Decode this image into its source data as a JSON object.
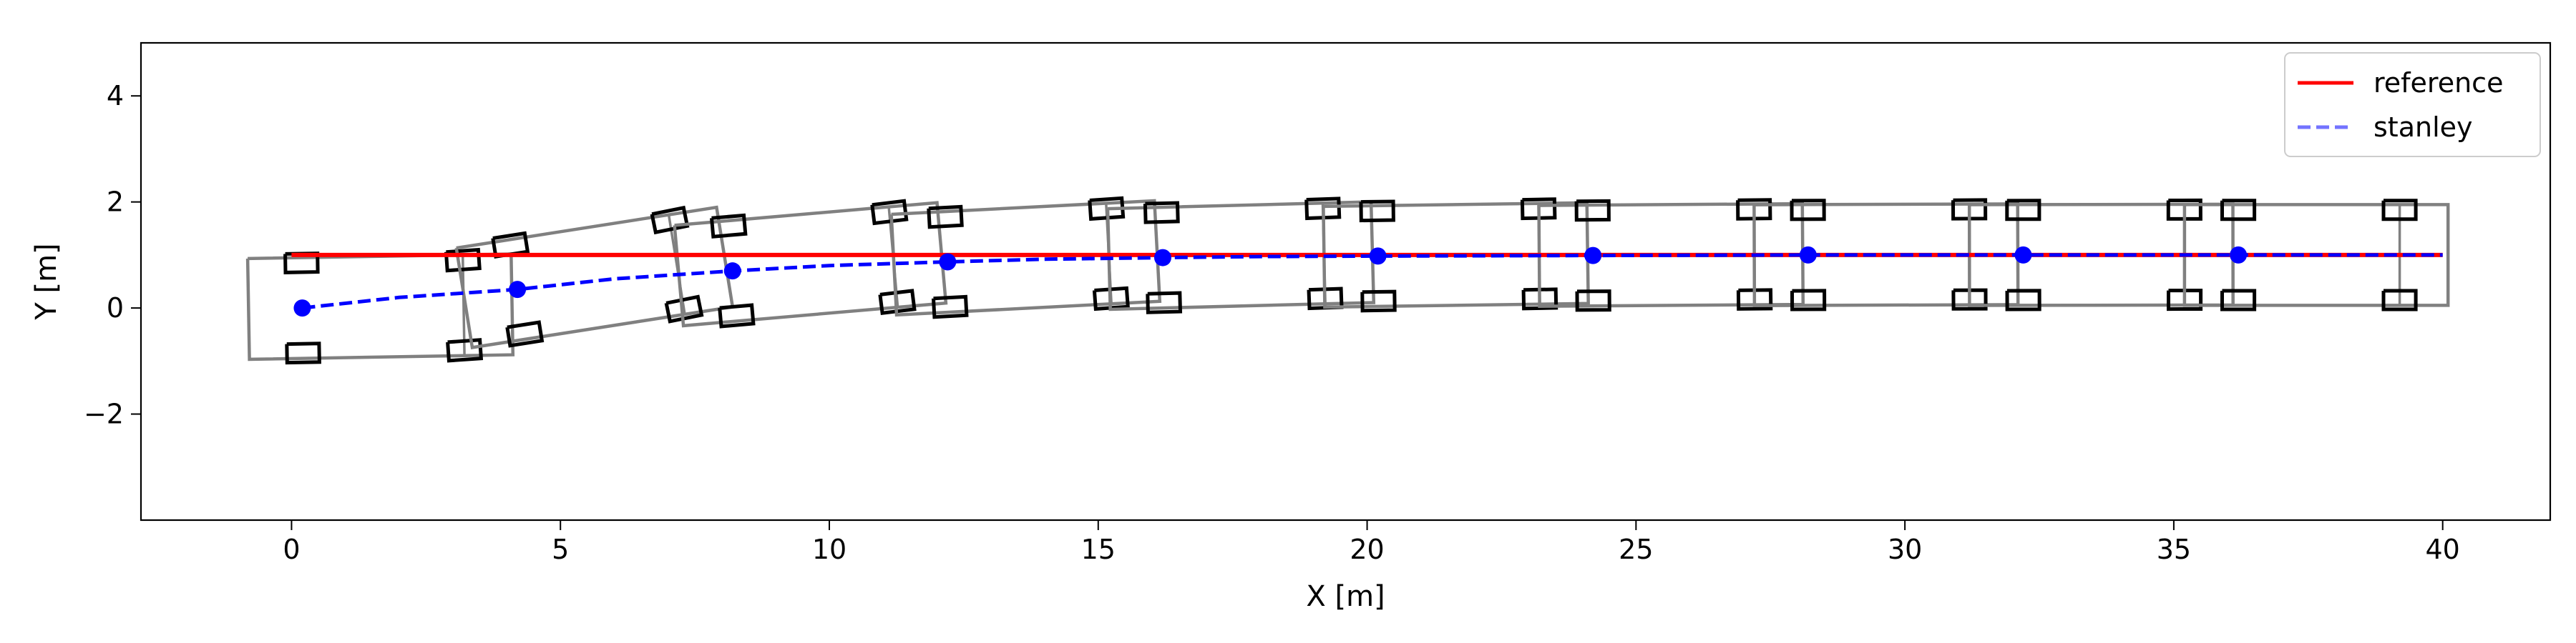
{
  "chart_data": {
    "type": "line",
    "title": "",
    "xlabel": "X [m]",
    "ylabel": "Y [m]",
    "xlim": [
      -2.8,
      42.0
    ],
    "ylim": [
      -4.0,
      5.0
    ],
    "xticks": [
      0,
      5,
      10,
      15,
      20,
      25,
      30,
      35,
      40
    ],
    "xtick_labels": [
      "0",
      "5",
      "10",
      "15",
      "20",
      "25",
      "30",
      "35",
      "40"
    ],
    "yticks": [
      -2,
      0,
      2,
      4
    ],
    "ytick_labels": [
      "−2",
      "0",
      "2",
      "4"
    ],
    "grid": false,
    "legend_position": "top-right",
    "series": [
      {
        "name": "reference",
        "style": "solid",
        "color": "#ff0000",
        "x": [
          0,
          40
        ],
        "y": [
          1.0,
          1.0
        ]
      },
      {
        "name": "stanley",
        "style": "dashed",
        "color": "#0000ff",
        "x": [
          0.2,
          2.0,
          4.2,
          6.0,
          8.2,
          10.0,
          12.2,
          14.0,
          16.2,
          18.0,
          20.2,
          24.2,
          28.2,
          32.2,
          36.2,
          40.0
        ],
        "y": [
          0.0,
          0.2,
          0.35,
          0.55,
          0.7,
          0.8,
          0.87,
          0.92,
          0.95,
          0.97,
          0.98,
          0.99,
          1.0,
          1.0,
          1.0,
          1.0
        ]
      }
    ],
    "markers": {
      "color": "#0000ff",
      "x": [
        0.2,
        4.2,
        8.2,
        12.2,
        16.2,
        20.2,
        24.2,
        28.2,
        32.2,
        36.2
      ],
      "y": [
        0.0,
        0.35,
        0.7,
        0.87,
        0.95,
        0.98,
        0.99,
        1.0,
        1.0,
        1.0
      ]
    },
    "vehicle_poses": {
      "body_color": "#808080",
      "wheel_color": "#000000",
      "rear_overhang": 1.0,
      "front_overhang": 3.9,
      "half_width": 0.95,
      "wheelbase": 3.0,
      "wheel_half_track": 0.85,
      "wheel_length": 0.6,
      "wheel_width": 0.35,
      "front_steer_deg": [
        3.0,
        2.5,
        2.0,
        1.0,
        0.5,
        0.3,
        0.2,
        0.1,
        0.0,
        0.0
      ],
      "x": [
        0.2,
        4.2,
        8.2,
        12.2,
        16.2,
        20.2,
        24.2,
        28.2,
        32.2,
        36.2
      ],
      "y": [
        0.0,
        0.35,
        0.7,
        0.87,
        0.95,
        0.98,
        0.99,
        1.0,
        1.0,
        1.0
      ],
      "yaw_deg": [
        1.0,
        9.0,
        5.0,
        3.0,
        1.5,
        0.8,
        0.4,
        0.2,
        0.1,
        0.0
      ]
    }
  }
}
